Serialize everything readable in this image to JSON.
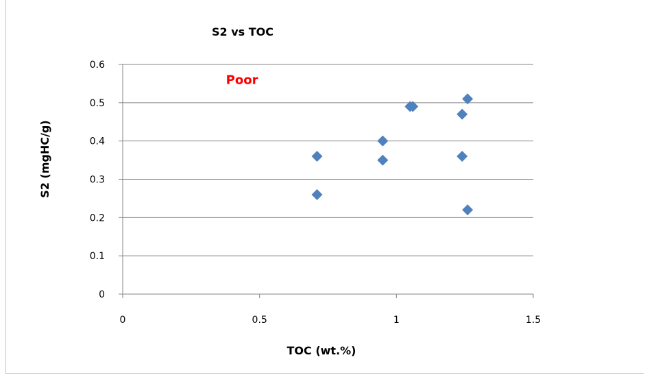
{
  "chart_data": {
    "type": "scatter",
    "title": "S2 vs TOC",
    "xlabel": "TOC (wt.%)",
    "ylabel": "S2 (mgHC/g)",
    "xlim": [
      0,
      1.5
    ],
    "ylim": [
      0,
      0.6
    ],
    "x_ticks": [
      "0",
      "0.5",
      "1",
      "1.5"
    ],
    "y_ticks": [
      "0",
      "0.1",
      "0.2",
      "0.3",
      "0.4",
      "0.5",
      "0.6"
    ],
    "grid": "horizontal",
    "legend": "none",
    "marker": "diamond",
    "series": [
      {
        "points": [
          {
            "x": 0.71,
            "y": 0.36
          },
          {
            "x": 0.71,
            "y": 0.26
          },
          {
            "x": 0.95,
            "y": 0.4
          },
          {
            "x": 0.95,
            "y": 0.35
          },
          {
            "x": 1.05,
            "y": 0.49
          },
          {
            "x": 1.06,
            "y": 0.49
          },
          {
            "x": 1.24,
            "y": 0.47
          },
          {
            "x": 1.26,
            "y": 0.51
          },
          {
            "x": 1.24,
            "y": 0.36
          },
          {
            "x": 1.26,
            "y": 0.22
          }
        ],
        "color": "#4f81bd"
      }
    ],
    "annotations": [
      {
        "text": "Poor",
        "x": 0.49,
        "y": 0.56,
        "color": "#ff0000"
      }
    ],
    "colors": {
      "gridline": "#868686",
      "axis": "#868686",
      "marker": "#4f81bd"
    }
  }
}
